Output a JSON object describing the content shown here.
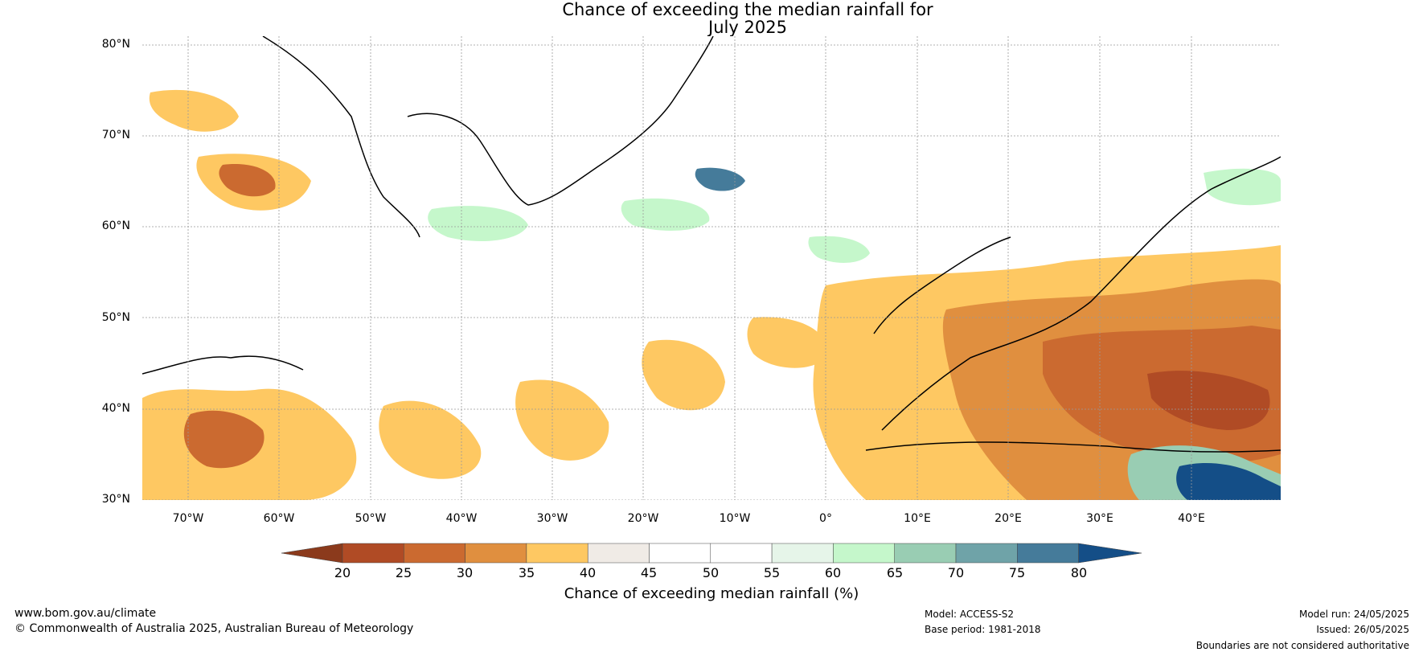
{
  "title_line1": "Chance of exceeding the median rainfall for",
  "title_line2": "July 2025",
  "lat_labels": [
    "80°N",
    "70°N",
    "60°N",
    "50°N",
    "40°N",
    "30°N"
  ],
  "lon_labels": [
    "70°W",
    "60°W",
    "50°W",
    "40°W",
    "30°W",
    "20°W",
    "10°W",
    "0°",
    "10°E",
    "20°E",
    "30°E",
    "40°E"
  ],
  "extent": {
    "lon": [
      -75,
      50
    ],
    "lat": [
      30,
      81
    ]
  },
  "colorbar": {
    "ticks": [
      "20",
      "25",
      "30",
      "35",
      "40",
      "45",
      "50",
      "55",
      "60",
      "65",
      "70",
      "75",
      "80"
    ],
    "colors": [
      "#8b3a1c",
      "#b04b25",
      "#cb6a30",
      "#e08f3f",
      "#fec862",
      "#f0ebe6",
      "#ffffff",
      "#ffffff",
      "#e6f5e9",
      "#c5f7cb",
      "#99cdb3",
      "#6fa3a8",
      "#457b9a",
      "#144e87"
    ],
    "label": "Chance of exceeding median rainfall (%)"
  },
  "footer": {
    "website": "www.bom.gov.au/climate",
    "copyright": "© Commonwealth of Australia 2025, Australian Bureau of Meteorology",
    "model": "Model: ACCESS-S2",
    "base_period": "Base period: 1981-2018",
    "model_run": "Model run: 24/05/2025",
    "issued": "Issued: 26/05/2025",
    "disclaimer": "Boundaries are not considered authoritative"
  }
}
